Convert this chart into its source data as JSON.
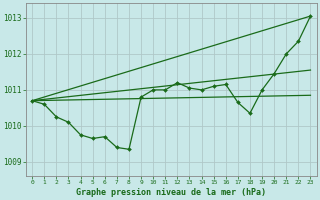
{
  "background_color": "#c8e8e8",
  "grid_color": "#b0c8c8",
  "line_color": "#1a6b1a",
  "xlabel": "Graphe pression niveau de la mer (hPa)",
  "xlim": [
    -0.5,
    23.5
  ],
  "ylim": [
    1008.6,
    1013.4
  ],
  "yticks": [
    1009,
    1010,
    1011,
    1012,
    1013
  ],
  "xticks": [
    0,
    1,
    2,
    3,
    4,
    5,
    6,
    7,
    8,
    9,
    10,
    11,
    12,
    13,
    14,
    15,
    16,
    17,
    18,
    19,
    20,
    21,
    22,
    23
  ],
  "trend1_x": [
    0,
    23
  ],
  "trend1_y": [
    1010.7,
    1010.85
  ],
  "trend2_x": [
    0,
    23
  ],
  "trend2_y": [
    1010.7,
    1013.05
  ],
  "trend3_x": [
    0,
    23
  ],
  "trend3_y": [
    1010.7,
    1011.55
  ],
  "main_x": [
    0,
    1,
    2,
    3,
    4,
    5,
    6,
    7,
    8,
    9,
    10,
    11,
    12,
    13,
    14,
    15,
    16,
    17,
    18,
    19,
    20,
    21,
    22,
    23
  ],
  "main_y": [
    1010.7,
    1010.6,
    1010.25,
    1010.1,
    1009.75,
    1009.65,
    1009.7,
    1009.4,
    1009.35,
    1010.8,
    1011.0,
    1011.0,
    1011.2,
    1011.05,
    1011.0,
    1011.1,
    1011.15,
    1010.65,
    1010.35,
    1011.0,
    1011.45,
    1012.0,
    1012.35,
    1013.05
  ]
}
